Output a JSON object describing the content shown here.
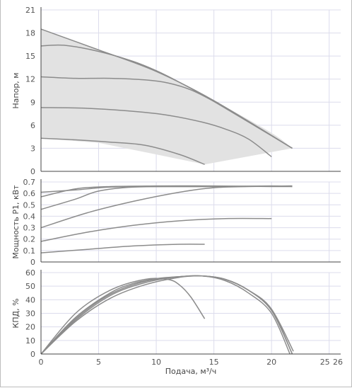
{
  "chart_data": [
    {
      "type": "line",
      "name": "head",
      "ylabel": "Напор, м",
      "xlim": [
        0,
        26
      ],
      "ylim": [
        0,
        21
      ],
      "yticks": [
        "0",
        "3",
        "6",
        "9",
        "12",
        "15",
        "18",
        "21"
      ],
      "envelope": [
        [
          0,
          18.5
        ],
        [
          5,
          15.8
        ],
        [
          10,
          13.0
        ],
        [
          15,
          9.2
        ],
        [
          20,
          5.0
        ],
        [
          21.8,
          3.0
        ],
        [
          14.2,
          0.9
        ],
        [
          10,
          2.2
        ],
        [
          5,
          3.7
        ],
        [
          0,
          4.3
        ]
      ],
      "series": [
        {
          "x": [
            0,
            5,
            10,
            15,
            21.8
          ],
          "y": [
            18.5,
            15.8,
            13.0,
            9.2,
            3.0
          ]
        },
        {
          "x": [
            0,
            2,
            5,
            8,
            10,
            12,
            15,
            21.8
          ],
          "y": [
            16.3,
            16.4,
            15.6,
            14.3,
            13.1,
            11.6,
            9.1,
            3.0
          ]
        },
        {
          "x": [
            0,
            3,
            6,
            9,
            11,
            13,
            15,
            18,
            21.8
          ],
          "y": [
            12.3,
            12.1,
            12.1,
            11.9,
            11.5,
            10.6,
            9.1,
            6.5,
            3.0
          ]
        },
        {
          "x": [
            0,
            4,
            8,
            11,
            14,
            16,
            18,
            20
          ],
          "y": [
            8.3,
            8.2,
            7.8,
            7.3,
            6.4,
            5.5,
            4.2,
            1.9
          ]
        },
        {
          "x": [
            0,
            3,
            6,
            9,
            12,
            14.2
          ],
          "y": [
            4.3,
            4.1,
            3.8,
            3.4,
            2.2,
            0.9
          ]
        }
      ]
    },
    {
      "type": "line",
      "name": "power",
      "ylabel": "Мощность P1, кВт",
      "xlim": [
        0,
        26
      ],
      "ylim": [
        0,
        0.7
      ],
      "yticks": [
        "0",
        "0.1",
        "0.2",
        "0.3",
        "0.4",
        "0.5",
        "0.6",
        "0.7"
      ],
      "series": [
        {
          "x": [
            0,
            3,
            6,
            10,
            15,
            20,
            21.8
          ],
          "y": [
            0.61,
            0.63,
            0.655,
            0.66,
            0.66,
            0.665,
            0.66
          ]
        },
        {
          "x": [
            0,
            3,
            6,
            10,
            15,
            20,
            21.8
          ],
          "y": [
            0.57,
            0.64,
            0.66,
            0.665,
            0.665,
            0.66,
            0.66
          ]
        },
        {
          "x": [
            0,
            3,
            5,
            8,
            12,
            15,
            21.8
          ],
          "y": [
            0.46,
            0.55,
            0.62,
            0.655,
            0.66,
            0.66,
            0.665
          ]
        },
        {
          "x": [
            0,
            4,
            8,
            12,
            15,
            18,
            21.8
          ],
          "y": [
            0.3,
            0.43,
            0.53,
            0.61,
            0.65,
            0.66,
            0.665
          ]
        },
        {
          "x": [
            0,
            4,
            8,
            12,
            16,
            20
          ],
          "y": [
            0.18,
            0.26,
            0.32,
            0.36,
            0.38,
            0.38
          ]
        },
        {
          "x": [
            0,
            4,
            8,
            12,
            14.2
          ],
          "y": [
            0.08,
            0.11,
            0.14,
            0.155,
            0.155
          ]
        }
      ]
    },
    {
      "type": "line",
      "name": "efficiency",
      "xlabel": "Подача, м³/ч",
      "ylabel": "КПД, %",
      "xlim": [
        0,
        26
      ],
      "ylim": [
        0,
        60
      ],
      "xticks": [
        "0",
        "5",
        "10",
        "15",
        "20",
        "25",
        "26"
      ],
      "yticks": [
        "0",
        "10",
        "20",
        "30",
        "40",
        "50",
        "60"
      ],
      "series": [
        {
          "x": [
            0,
            3,
            6,
            9,
            12,
            14,
            16,
            18,
            20,
            21.8
          ],
          "y": [
            0,
            25,
            43,
            52.5,
            57,
            57.5,
            55,
            47,
            32,
            0
          ]
        },
        {
          "x": [
            0,
            3,
            6,
            9,
            12,
            14,
            16,
            18,
            20,
            21.6
          ],
          "y": [
            0,
            26,
            44,
            53.5,
            57,
            57.5,
            54,
            45,
            30,
            0
          ]
        },
        {
          "x": [
            0,
            3,
            6,
            9,
            12,
            14,
            16,
            18,
            20,
            21.9
          ],
          "y": [
            0,
            24,
            41,
            51,
            56.5,
            57.5,
            55,
            47,
            33,
            2
          ]
        },
        {
          "x": [
            0,
            3,
            6,
            8,
            10,
            12,
            14,
            16,
            18,
            20,
            21.8
          ],
          "y": [
            0,
            27,
            45,
            52,
            55.5,
            57,
            57.5,
            55,
            47,
            33,
            0
          ]
        },
        {
          "x": [
            0,
            3,
            6,
            9,
            11,
            12,
            13,
            14.2
          ],
          "y": [
            0,
            30,
            47,
            55,
            55,
            51,
            42,
            26
          ]
        }
      ]
    }
  ]
}
